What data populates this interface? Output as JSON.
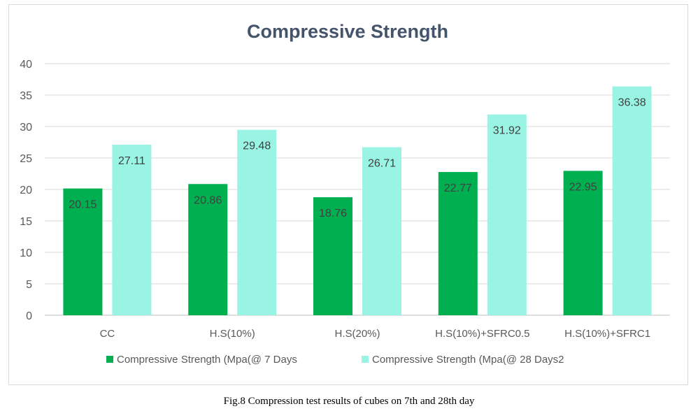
{
  "chart_data": {
    "type": "bar",
    "title": "Compressive Strength",
    "xlabel": "",
    "ylabel": "",
    "ylim": [
      0,
      40
    ],
    "yticks": [
      0,
      5,
      10,
      15,
      20,
      25,
      30,
      35,
      40
    ],
    "grid": true,
    "legend_position": "bottom",
    "categories": [
      "CC",
      "H.S(10%)",
      "H.S(20%)",
      "H.S(10%)+SFRC0.5",
      "H.S(10%)+SFRC1"
    ],
    "series": [
      {
        "name": "Compressive Strength (Mpa(@ 7 Days",
        "color": "#00b050",
        "values": [
          20.15,
          20.86,
          18.76,
          22.77,
          22.95
        ]
      },
      {
        "name": "Compressive Strength (Mpa(@ 28 Days2",
        "color": "#99f4e3",
        "values": [
          27.11,
          29.48,
          26.71,
          31.92,
          36.38
        ]
      }
    ]
  },
  "caption": "Fig.8 Compression test results of cubes on 7th and 28th day"
}
